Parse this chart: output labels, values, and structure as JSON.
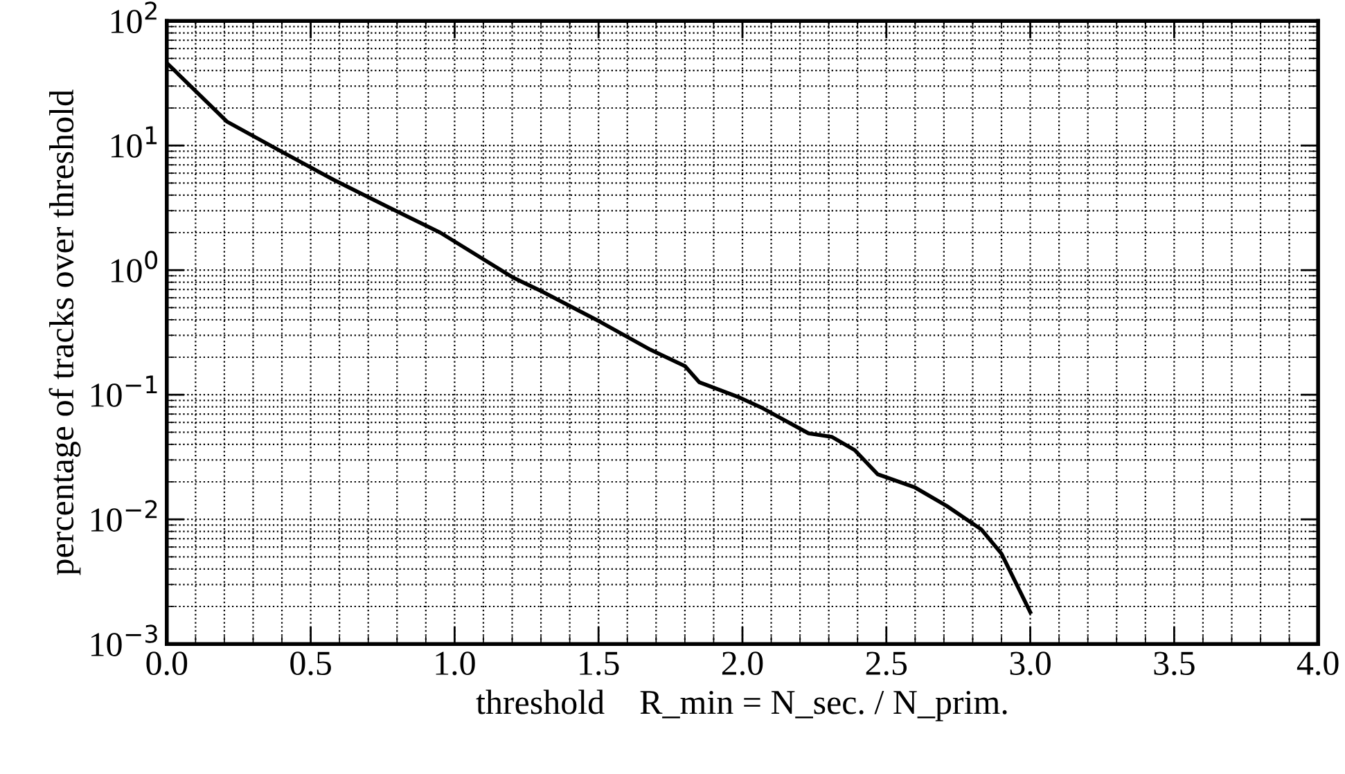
{
  "chart_data": {
    "type": "line",
    "xlabel": "threshold    R_min = N_sec. / N_prim.",
    "ylabel": "percentage of tracks over threshold",
    "x": [
      0,
      0.11,
      0.21,
      0.385,
      0.58,
      0.77,
      0.95,
      1.2,
      1.3,
      1.51,
      1.68,
      1.8,
      1.85,
      1.99,
      2.07,
      2.23,
      2.31,
      2.39,
      2.47,
      2.6,
      2.71,
      2.83,
      2.9,
      3.0
    ],
    "series": [
      {
        "color": "#000000",
        "values": [
          46,
          26,
          15.5,
          9.3,
          5.3,
          3.2,
          2.0,
          0.88,
          0.68,
          0.38,
          0.23,
          0.17,
          0.126,
          0.095,
          0.078,
          0.049,
          0.046,
          0.036,
          0.023,
          0.018,
          0.0128,
          0.0083,
          0.0053,
          0.0018
        ]
      }
    ],
    "log": "y",
    "xlim": [
      0,
      4
    ],
    "xticks": [
      {
        "value": 0,
        "label": "0.0"
      },
      0.5,
      {
        "value": 1,
        "label": "1.0"
      },
      1.5,
      {
        "value": 2,
        "label": "2.0"
      },
      2.5,
      {
        "value": 3,
        "label": "3.0"
      },
      3.5,
      {
        "value": 4,
        "label": "4.0"
      }
    ],
    "ylim": [
      0.001,
      100
    ],
    "yticks": [
      {
        "value": 0.001,
        "label": "10$^{−3}$"
      },
      {
        "value": 0.01,
        "label": "10$^{−2}$"
      },
      {
        "value": 0.1,
        "label": "10$^{−1}$"
      },
      {
        "value": 1,
        "label": "10$^{0}$"
      },
      {
        "value": 10,
        "label": "10$^{1}$"
      },
      {
        "value": 100,
        "label": "10$^{2}$"
      }
    ],
    "grid": true,
    "line_style": "solid",
    "marker": "none"
  }
}
